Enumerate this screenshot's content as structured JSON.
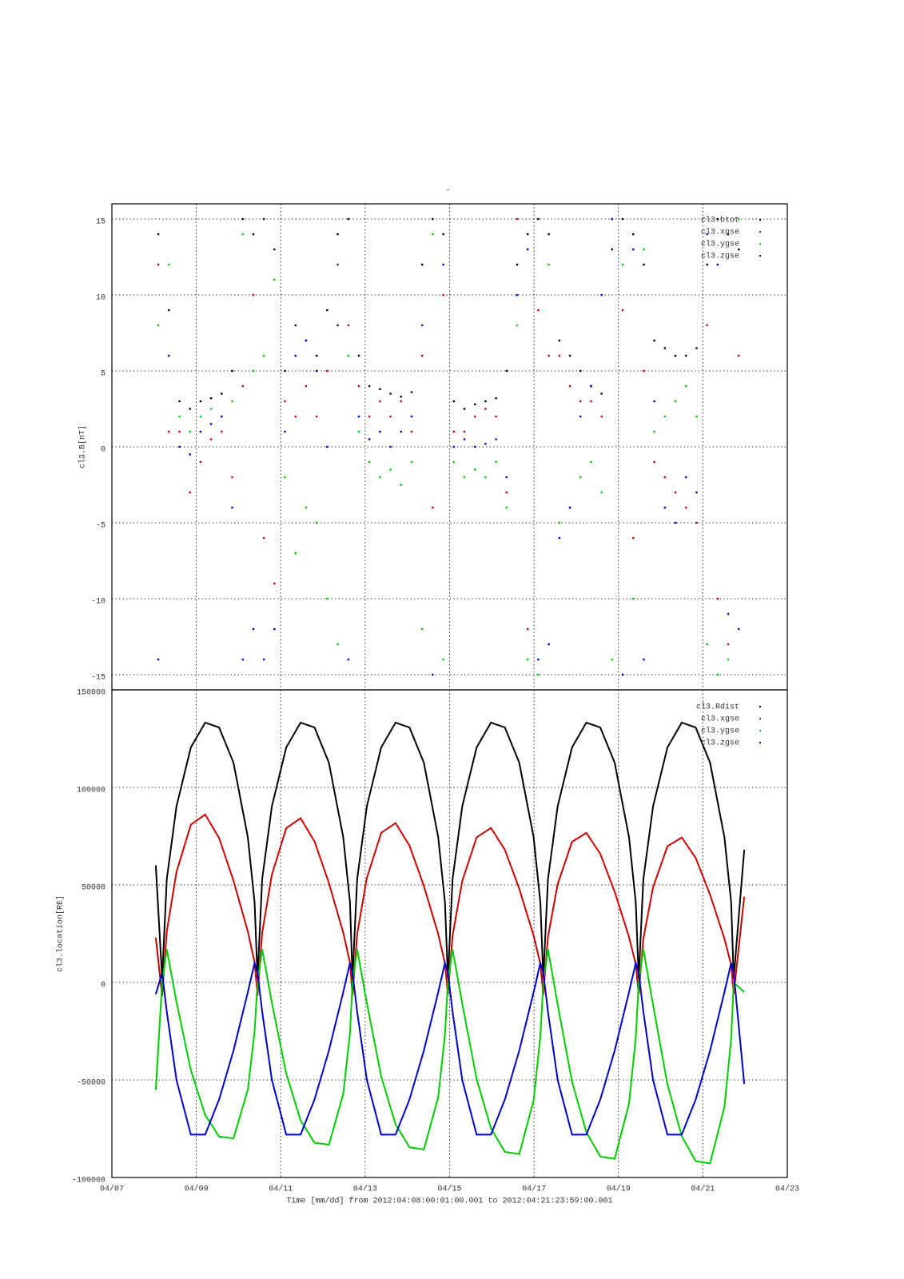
{
  "chart_data": [
    {
      "type": "scatter",
      "title": "-",
      "y_label": "cl3.B[nT]",
      "grid": true,
      "legend": "top-right",
      "xlim": [
        7,
        23
      ],
      "xticks": [
        7,
        9,
        11,
        13,
        15,
        17,
        19,
        21,
        23
      ],
      "ylim": [
        -16,
        16
      ],
      "yticks": [
        -15,
        -10,
        -5,
        0,
        5,
        10,
        15
      ],
      "x": [
        8.1,
        8.35,
        8.6,
        8.85,
        9.1,
        9.35,
        9.6,
        9.85,
        10.1,
        10.35,
        10.6,
        10.85,
        11.1,
        11.35,
        11.6,
        11.85,
        12.1,
        12.35,
        12.6,
        12.85,
        13.1,
        13.35,
        13.6,
        13.85,
        14.1,
        14.35,
        14.6,
        14.85,
        15.1,
        15.35,
        15.6,
        15.85,
        16.1,
        16.35,
        16.6,
        16.85,
        17.1,
        17.35,
        17.6,
        17.85,
        18.1,
        18.35,
        18.6,
        18.85,
        19.1,
        19.35,
        19.6,
        19.85,
        20.1,
        20.35,
        20.6,
        20.85,
        21.1,
        21.35,
        21.6,
        21.85
      ],
      "series": [
        {
          "name": "cl3.btot",
          "color": "#000000",
          "values": [
            14,
            9,
            3,
            2.5,
            3,
            3.2,
            3.5,
            5,
            15,
            14,
            15,
            13,
            5,
            8,
            7,
            6,
            9,
            14,
            15,
            6,
            4,
            3.8,
            3.5,
            3.3,
            3.6,
            12,
            15,
            14,
            3,
            2.5,
            2.8,
            3,
            3.2,
            5,
            12,
            14,
            15,
            14,
            7,
            6,
            5,
            4,
            3.5,
            13,
            15,
            14,
            12,
            7,
            6.5,
            6,
            6,
            6.5,
            12,
            15,
            14,
            13
          ]
        },
        {
          "name": "cl3.xgse",
          "color": "#cc0000",
          "values": [
            12,
            1,
            1,
            -3,
            -1,
            0.5,
            1,
            -2,
            4,
            10,
            -6,
            -9,
            3,
            2,
            4,
            2,
            5,
            12,
            8,
            4,
            2,
            3,
            2,
            3,
            1,
            6,
            -4,
            10,
            1,
            1,
            2,
            2.5,
            2,
            -3,
            15,
            -12,
            9,
            6,
            6,
            4,
            3,
            3,
            2,
            15,
            9,
            -6,
            5,
            -1,
            -2,
            -3,
            -4,
            -5,
            8,
            -10,
            -13,
            6
          ]
        },
        {
          "name": "cl3.ygse",
          "color": "#00cc00",
          "values": [
            8,
            12,
            2,
            1,
            2,
            2.5,
            2,
            3,
            14,
            5,
            6,
            11,
            -2,
            -7,
            -4,
            -5,
            -10,
            -13,
            6,
            1,
            -1,
            -2,
            -1.5,
            -2.5,
            -1,
            -12,
            14,
            -14,
            -1,
            -2,
            -1.5,
            -2,
            -1,
            -4,
            8,
            -14,
            -15,
            12,
            -5,
            -4,
            -2,
            -1,
            -3,
            -14,
            12,
            -10,
            13,
            1,
            2,
            3,
            4,
            2,
            -13,
            -15,
            -14,
            15
          ]
        },
        {
          "name": "cl3.zgse",
          "color": "#0000cc",
          "values": [
            -14,
            6,
            0,
            -0.5,
            1,
            1.5,
            2,
            -4,
            -14,
            -12,
            -14,
            -12,
            1,
            6,
            7,
            5,
            0,
            8,
            -14,
            2,
            0.5,
            1,
            0,
            1,
            2,
            8,
            -15,
            12,
            0,
            0.5,
            0,
            0.2,
            0.5,
            -2,
            10,
            13,
            -14,
            -13,
            -6,
            -4,
            2,
            4,
            10,
            15,
            -15,
            13,
            -14,
            3,
            -4,
            -5,
            -2,
            -3,
            14,
            12,
            -11,
            -12
          ]
        }
      ]
    },
    {
      "type": "line",
      "y_label": "cl3.location[RE]",
      "grid": true,
      "legend": "top-right",
      "x_label": "Time [mm/dd]  from 2012:04:08:00:01:00.001  to  2012:04:21:23:59:00.001",
      "xlim": [
        7,
        23
      ],
      "xticks": [
        {
          "value": 7,
          "label": "04/07"
        },
        {
          "value": 9,
          "label": "04/09"
        },
        {
          "value": 11,
          "label": "04/11"
        },
        {
          "value": 13,
          "label": "04/13"
        },
        {
          "value": 15,
          "label": "04/15"
        },
        {
          "value": 17,
          "label": "04/17"
        },
        {
          "value": 19,
          "label": "04/19"
        },
        {
          "value": 21,
          "label": "04/21"
        },
        {
          "value": 23,
          "label": "04/23"
        }
      ],
      "ylim": [
        -100000,
        150000
      ],
      "yticks": [
        -100000,
        -50000,
        0,
        50000,
        100000,
        150000
      ],
      "x": [
        8.04,
        8.19,
        8.3,
        8.53,
        8.87,
        9.21,
        9.54,
        9.88,
        10.22,
        10.38,
        10.45,
        10.56,
        10.79,
        11.13,
        11.47,
        11.8,
        12.14,
        12.48,
        12.64,
        12.7,
        12.81,
        13.04,
        13.38,
        13.72,
        14.05,
        14.39,
        14.73,
        14.89,
        14.96,
        15.07,
        15.3,
        15.64,
        15.98,
        16.31,
        16.65,
        16.99,
        17.15,
        17.22,
        17.33,
        17.56,
        17.9,
        18.24,
        18.57,
        18.91,
        19.25,
        19.41,
        19.48,
        19.59,
        19.82,
        20.16,
        20.5,
        20.83,
        21.17,
        21.51,
        21.67,
        21.73,
        21.98
      ],
      "series": [
        {
          "name": "cl3.Rdist",
          "color": "#000000",
          "values": [
            60000,
            2000,
            52900,
            90300,
            120500,
            133200,
            130700,
            112700,
            74500,
            41100,
            2000,
            52900,
            90300,
            120500,
            133200,
            130700,
            112700,
            74500,
            41100,
            2000,
            52900,
            90300,
            120500,
            133200,
            130700,
            112700,
            74500,
            41100,
            2000,
            52900,
            90300,
            120500,
            133200,
            130700,
            112700,
            74500,
            41100,
            2000,
            52900,
            90300,
            120500,
            133200,
            130700,
            112700,
            74500,
            41100,
            2000,
            52900,
            90300,
            120500,
            133200,
            130700,
            112700,
            74500,
            41100,
            2000,
            68000
          ]
        },
        {
          "name": "cl3.xgse",
          "color": "#cc0000",
          "values": [
            23000,
            -7000,
            26100,
            56600,
            80900,
            86100,
            74000,
            52200,
            26100,
            10400,
            -6800,
            25500,
            55300,
            79100,
            84200,
            72300,
            51000,
            25500,
            10200,
            -6600,
            24800,
            53600,
            76700,
            81700,
            70100,
            49500,
            24800,
            9900,
            -6400,
            24000,
            52000,
            74400,
            79200,
            68000,
            48000,
            24000,
            9600,
            -6200,
            23300,
            50400,
            72100,
            76700,
            65900,
            46500,
            23300,
            9300,
            -6000,
            22500,
            48800,
            69800,
            74300,
            63800,
            45000,
            22500,
            9000,
            -6000,
            44000
          ]
        },
        {
          "name": "cl3.ygse",
          "color": "#00cc00",
          "values": [
            -55000,
            0,
            17000,
            -10000,
            -45000,
            -68000,
            -79000,
            -80000,
            -55000,
            -25000,
            0,
            17000,
            -10400,
            -46800,
            -70700,
            -82200,
            -83200,
            -57200,
            -26000,
            0,
            17000,
            -10700,
            -48200,
            -72800,
            -84500,
            -85600,
            -58900,
            -26800,
            0,
            17000,
            -11000,
            -49500,
            -74800,
            -86900,
            -88000,
            -60500,
            -27500,
            0,
            17000,
            -11300,
            -50900,
            -76800,
            -89300,
            -90400,
            -62200,
            -28300,
            0,
            17000,
            -11600,
            -52200,
            -78900,
            -91600,
            -92800,
            -63800,
            -29000,
            0,
            -5000
          ]
        },
        {
          "name": "cl3.zgse",
          "color": "#0000cc",
          "values": [
            -6000,
            5000,
            -15000,
            -50000,
            -78000,
            -78000,
            -60000,
            -35000,
            -5000,
            10000,
            5000,
            -15000,
            -50000,
            -78000,
            -78000,
            -60000,
            -35000,
            -5000,
            10000,
            5000,
            -15000,
            -50000,
            -78000,
            -78000,
            -60000,
            -35000,
            -5000,
            10000,
            5000,
            -15000,
            -50000,
            -78000,
            -78000,
            -60000,
            -35000,
            -5000,
            10000,
            5000,
            -15000,
            -50000,
            -78000,
            -78000,
            -60000,
            -35000,
            -5000,
            10000,
            5000,
            -15000,
            -50000,
            -78000,
            -78000,
            -60000,
            -35000,
            -5000,
            10000,
            5000,
            -52000
          ]
        }
      ]
    }
  ]
}
